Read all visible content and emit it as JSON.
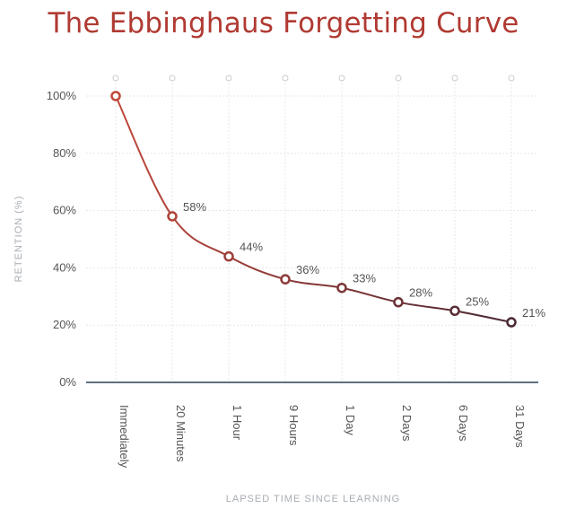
{
  "chart_data": {
    "type": "line",
    "title": "The Ebbinghaus Forgetting Curve",
    "xlabel": "LAPSED TIME SINCE LEARNING",
    "ylabel": "RETENTION (%)",
    "categories": [
      "Immediately",
      "20 Minutes",
      "1 Hour",
      "9 Hours",
      "1 Day",
      "2 Days",
      "6 Days",
      "31 Days"
    ],
    "values": [
      100,
      58,
      44,
      36,
      33,
      28,
      25,
      21
    ],
    "data_labels": [
      "",
      "58%",
      "44%",
      "36%",
      "33%",
      "28%",
      "25%",
      "21%"
    ],
    "y_ticks": [
      0,
      20,
      40,
      60,
      80,
      100
    ],
    "y_tick_labels": [
      "0%",
      "20%",
      "40%",
      "60%",
      "80%",
      "100%"
    ],
    "ylim": [
      0,
      100
    ],
    "grid": true,
    "colors": {
      "title": "#b03a32",
      "line_start": "#c0473a",
      "line_end": "#4a2a35",
      "axis": "#5f6f7f",
      "grid": "#e4e7ea"
    }
  }
}
